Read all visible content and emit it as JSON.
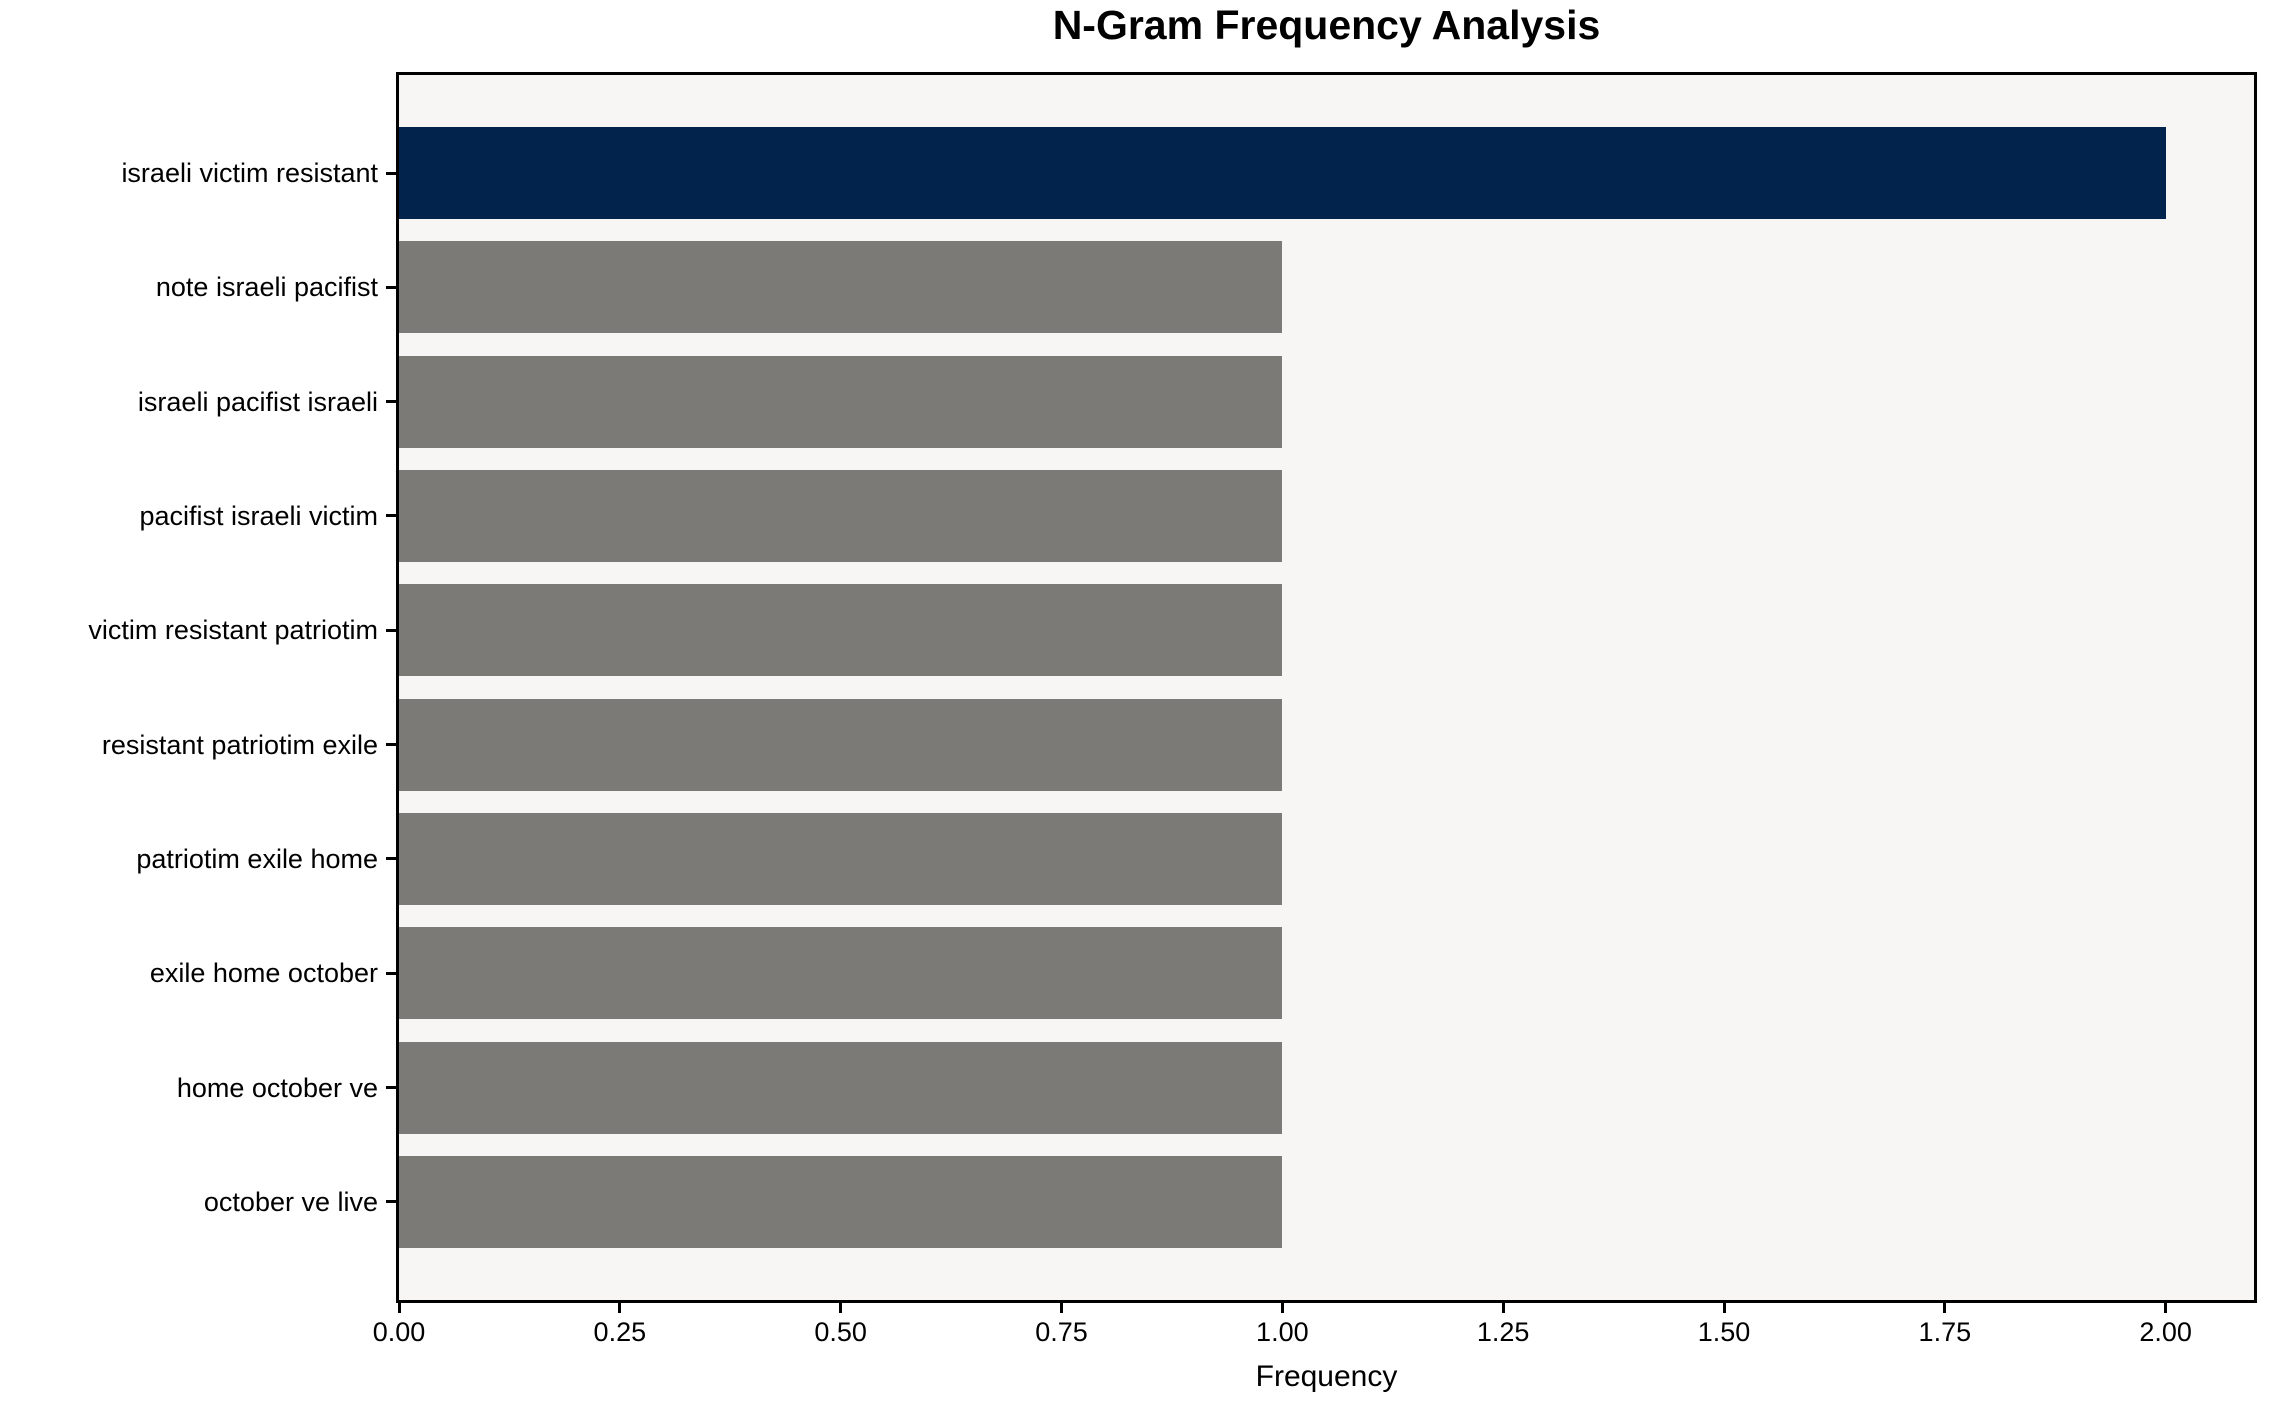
{
  "title": "N-Gram Frequency Analysis",
  "chart_data": {
    "type": "bar",
    "orientation": "horizontal",
    "title": "N-Gram Frequency Analysis",
    "xlabel": "Frequency",
    "ylabel": "",
    "categories": [
      "israeli victim resistant",
      "note israeli pacifist",
      "israeli pacifist israeli",
      "pacifist israeli victim",
      "victim resistant patriotim",
      "resistant patriotim exile",
      "patriotim exile home",
      "exile home october",
      "home october ve",
      "october ve live"
    ],
    "values": [
      2,
      1,
      1,
      1,
      1,
      1,
      1,
      1,
      1,
      1
    ],
    "bar_colors": [
      "#02234b",
      "#7b7a77",
      "#7b7a77",
      "#7b7a77",
      "#7b7a77",
      "#7b7a77",
      "#7b7a77",
      "#7b7a77",
      "#7b7a77",
      "#7b7a77"
    ],
    "colors": {
      "highlight": "#02234b",
      "default_bar": "#7b7a77",
      "plot_background": "#f7f6f5",
      "figure_background": "#ffffff",
      "spine": "#000000"
    },
    "xlim": [
      0,
      2.1
    ],
    "xticks": {
      "values": [
        0,
        0.25,
        0.5,
        0.75,
        1.0,
        1.25,
        1.5,
        1.75,
        2.0
      ],
      "labels": [
        "0.00",
        "0.25",
        "0.50",
        "0.75",
        "1.00",
        "1.25",
        "1.50",
        "1.75",
        "2.00"
      ]
    },
    "grid": false,
    "legend": null
  }
}
